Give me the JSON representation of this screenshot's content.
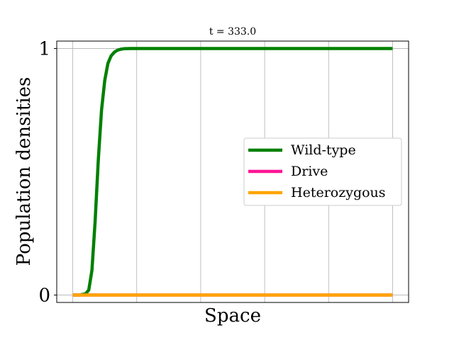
{
  "chart_data": {
    "type": "line",
    "title": "t = 333.0",
    "xlabel": "Space",
    "ylabel": "Population densities",
    "grid": true,
    "legend_position": "center-right",
    "x_ticks_labeled": false,
    "xlim": [
      -0.05,
      1.05
    ],
    "ylim": [
      -0.03,
      1.03
    ],
    "yticks": [
      0,
      1
    ],
    "ytick_labels": [
      "0",
      "1"
    ],
    "xgrid": [
      0.2,
      0.4,
      0.6,
      0.8,
      1.0
    ],
    "series": [
      {
        "name": "Wild-type",
        "color": "#008000",
        "x": [
          0,
          0.02,
          0.04,
          0.05,
          0.06,
          0.07,
          0.08,
          0.09,
          0.1,
          0.11,
          0.12,
          0.13,
          0.14,
          0.15,
          0.16,
          0.18,
          0.2,
          0.25,
          0.3,
          0.4,
          0.5,
          0.6,
          0.7,
          0.8,
          0.9,
          1.0
        ],
        "y": [
          0,
          0,
          0.005,
          0.02,
          0.1,
          0.3,
          0.55,
          0.75,
          0.87,
          0.94,
          0.97,
          0.985,
          0.993,
          0.997,
          0.999,
          1.0,
          1.0,
          1.0,
          1.0,
          1.0,
          1.0,
          1.0,
          1.0,
          1.0,
          1.0,
          1.0
        ]
      },
      {
        "name": "Drive",
        "color": "#ff1493",
        "x": [
          0,
          1.0
        ],
        "y": [
          0,
          0
        ]
      },
      {
        "name": "Heterozygous",
        "color": "#ffa500",
        "x": [
          0,
          1.0
        ],
        "y": [
          0,
          0
        ]
      }
    ]
  }
}
